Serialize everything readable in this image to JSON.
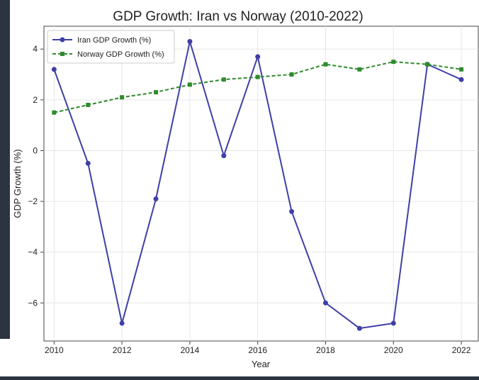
{
  "chart_data": {
    "type": "line",
    "title": "GDP Growth: Iran vs Norway (2010-2022)",
    "xlabel": "Year",
    "ylabel": "GDP Growth (%)",
    "x": [
      2010,
      2011,
      2012,
      2013,
      2014,
      2015,
      2016,
      2017,
      2018,
      2019,
      2020,
      2021,
      2022
    ],
    "xticks": [
      2010,
      2012,
      2014,
      2016,
      2018,
      2020,
      2022
    ],
    "yticks": [
      -6,
      -4,
      -2,
      0,
      2,
      4
    ],
    "xtick_labels": [
      "2010",
      "2012",
      "2014",
      "2016",
      "2018",
      "2020",
      "2022"
    ],
    "ytick_labels": [
      "−6",
      "−4",
      "−2",
      "0",
      "2",
      "4"
    ],
    "xlim": [
      2009.7,
      2022.5
    ],
    "ylim": [
      -7.5,
      4.9
    ],
    "grid": true,
    "legend_position": "top-left",
    "series": [
      {
        "name": "Iran GDP Growth (%)",
        "values": [
          3.2,
          -0.5,
          -6.8,
          -1.9,
          4.3,
          -0.2,
          3.7,
          -2.4,
          -6.0,
          -7.0,
          -6.8,
          3.4,
          2.8
        ],
        "color": "#3f3fa6",
        "style": "solid",
        "marker": "circle"
      },
      {
        "name": "Norway GDP Growth (%)",
        "values": [
          1.5,
          1.8,
          2.1,
          2.3,
          2.6,
          2.8,
          2.9,
          3.0,
          3.4,
          3.2,
          3.5,
          3.4,
          3.2
        ],
        "color": "#2e8b2e",
        "style": "dashed",
        "marker": "square"
      }
    ]
  }
}
